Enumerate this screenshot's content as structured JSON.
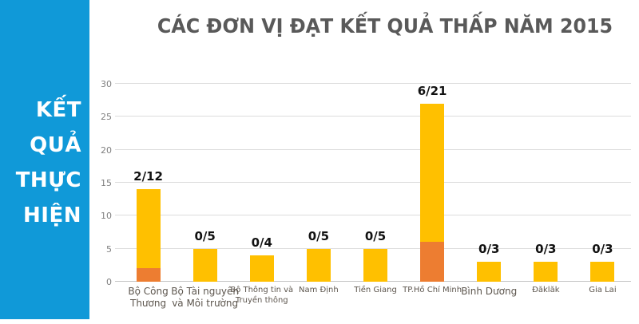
{
  "header": {
    "title": "CÁC ĐƠN VỊ ĐẠT KẾT QUẢ THẤP NĂM 2015",
    "title_color": "#595959"
  },
  "sidebar": {
    "lines": [
      "KẾT",
      "QUẢ",
      "THỰC",
      "HIỆN"
    ],
    "background": "#1099D8",
    "text_color": "#FFFFFF"
  },
  "chart_data": {
    "type": "bar",
    "stacked": true,
    "title": "CÁC ĐƠN VỊ ĐẠT KẾT QUẢ THẤP NĂM 2015",
    "categories": [
      "Bộ Công Thương",
      "Bộ Tài nguyên và Môi trường",
      "Bộ Thông tin và Truyền thông",
      "Nam Định",
      "Tiền Giang",
      "TP.Hồ Chí Minh",
      "Bình Dương",
      "Đăklăk",
      "Gia Lai"
    ],
    "series": [
      {
        "color": "#ED7D31",
        "values": [
          2,
          0,
          0,
          0,
          0,
          6,
          0,
          0,
          0
        ]
      },
      {
        "color": "#FFC000",
        "values": [
          12,
          5,
          4,
          5,
          5,
          21,
          3,
          3,
          3
        ]
      }
    ],
    "totals": [
      14,
      5,
      4,
      5,
      5,
      27,
      3,
      3,
      3
    ],
    "bar_labels": [
      "2/12",
      "0/5",
      "0/4",
      "0/5",
      "0/5",
      "6/21",
      "0/3",
      "0/3",
      "0/3"
    ],
    "y_ticks": [
      0,
      5,
      10,
      15,
      20,
      25,
      30
    ],
    "ylim": [
      0,
      30
    ],
    "xlabel": "",
    "ylabel": "",
    "grid": true,
    "legend": "none",
    "gridline_color": "#DCDCDC",
    "axis_label_color": "#7F7F7F",
    "category_label_color": "#5D564E",
    "bar_label_color": "#111111"
  }
}
